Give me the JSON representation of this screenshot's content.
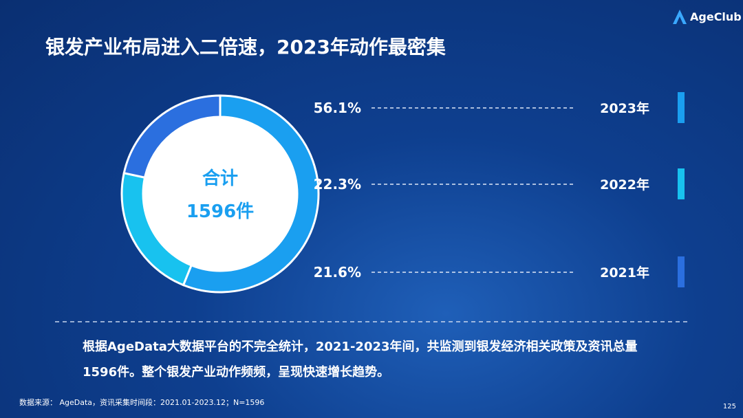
{
  "brand": "AgeClub",
  "page_number": "125",
  "chart_data": {
    "type": "donut",
    "title": "银发产业布局进入二倍速，2023年动作最密集",
    "categories": [
      "2023年",
      "2022年",
      "2021年"
    ],
    "values": [
      56.1,
      22.3,
      21.6
    ],
    "value_labels": [
      "56.1%",
      "22.3%",
      "21.6%"
    ],
    "colors": [
      "#1a9ff0",
      "#18c2ef",
      "#2b6fdf"
    ],
    "center_label": [
      "合计",
      "1596件"
    ],
    "note": "根据AgeData大数据平台的不完全统计，2021-2023年间，共监测到银发经济相关政策及资讯总量1596件。整个银发产业动作频频，呈现快速增长趋势。",
    "source": "数据来源： AgeData，资讯采集时间段：2021.01-2023.12；N=1596"
  }
}
